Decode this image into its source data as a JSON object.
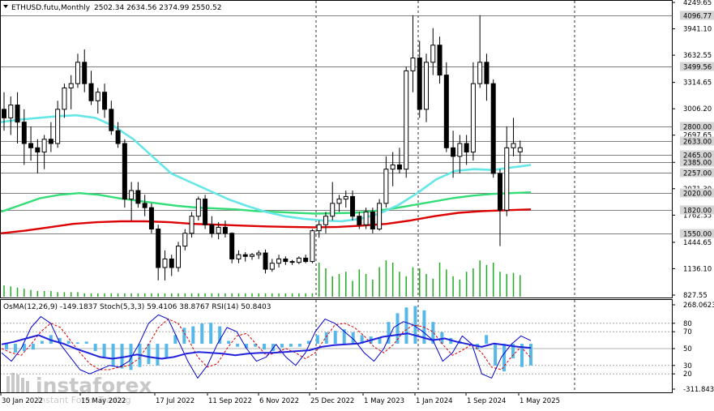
{
  "header": {
    "symbol": "ETHUSD.futu,Monthly",
    "ohlc": "2502.34 2634.56 2374.99 2550.52"
  },
  "oscillator_header": "OsMA(12,26,9) -149.1837  Stoch(5,3,3) 59.4106 38.8767  RSI(14) 50.8403",
  "watermark": {
    "brand": "instaforex",
    "tagline": "Instant Forex Trading"
  },
  "colors": {
    "up_candle": "#ffffff",
    "down_candle": "#000000",
    "ma_fast": "#66e6e6",
    "ma_mid": "#33dd77",
    "ma_slow": "#dd0000",
    "volume": "#22aa22",
    "osma_hist": "#55b8e8",
    "stoch_main": "#0000cc",
    "stoch_signal": "#dd0000",
    "rsi": "#2222dd",
    "tag_bg": "#d4d4d4"
  },
  "chart_data": [
    {
      "type": "candlestick",
      "title": "ETHUSD.futu,Monthly",
      "price_axis_ticks": [
        "4249.65",
        "3941.10",
        "3632.55",
        "3314.65",
        "3006.20",
        "2697.65",
        "2379.75",
        "2071.30",
        "1762.35",
        "1444.65",
        "1136.10",
        "827.55"
      ],
      "price_axis_tick_values": [
        4249.65,
        3941.1,
        3632.55,
        3314.65,
        3006.2,
        2697.65,
        2379.75,
        2071.3,
        1762.35,
        1444.65,
        1136.1,
        827.55
      ],
      "level_tags": [
        "4096.77",
        "3499.56",
        "2800.00",
        "2633.00",
        "2465.00",
        "2385.00",
        "2257.00",
        "2020.00",
        "1820.00",
        "1550.00"
      ],
      "level_values": [
        4096.77,
        3499.56,
        2800.0,
        2633.0,
        2465.0,
        2385.0,
        2257.0,
        2020.0,
        1820.0,
        1550.0
      ],
      "x_axis_labels": [
        "30 Jan 2022",
        "15 May 2022",
        "17 Jul 2022",
        "11 Sep 2022",
        "6 Nov 2022",
        "25 Dec 2022",
        "1 May 2023",
        "1 Jan 2024",
        "1 Sep 2024",
        "1 May 2025"
      ],
      "candles": [
        [
          3000,
          3200,
          2750,
          2900
        ],
        [
          2900,
          3150,
          2700,
          3050
        ],
        [
          3050,
          3200,
          2600,
          2850
        ],
        [
          2850,
          3000,
          2350,
          2600
        ],
        [
          2600,
          2800,
          2400,
          2550
        ],
        [
          2550,
          2650,
          2250,
          2500
        ],
        [
          2500,
          2700,
          2300,
          2650
        ],
        [
          2650,
          2850,
          2500,
          2600
        ],
        [
          2600,
          3100,
          2550,
          3000
        ],
        [
          3000,
          3300,
          2900,
          3250
        ],
        [
          3250,
          3400,
          3000,
          3300
        ],
        [
          3300,
          3650,
          3250,
          3550
        ],
        [
          3550,
          3700,
          3200,
          3300
        ],
        [
          3300,
          3450,
          3050,
          3100
        ],
        [
          3100,
          3250,
          2950,
          3200
        ],
        [
          3200,
          3300,
          2900,
          3000
        ],
        [
          3000,
          3100,
          2700,
          2750
        ],
        [
          2750,
          2850,
          2550,
          2600
        ],
        [
          2600,
          2650,
          1850,
          1950
        ],
        [
          1950,
          2150,
          1700,
          2050
        ],
        [
          2050,
          2150,
          1850,
          1900
        ],
        [
          1900,
          2000,
          1750,
          1850
        ],
        [
          1850,
          1900,
          1550,
          1600
        ],
        [
          1600,
          1650,
          1000,
          1150
        ],
        [
          1150,
          1350,
          1000,
          1250
        ],
        [
          1250,
          1300,
          1050,
          1150
        ],
        [
          1150,
          1450,
          1100,
          1400
        ],
        [
          1400,
          1600,
          1350,
          1550
        ],
        [
          1550,
          1800,
          1500,
          1750
        ],
        [
          1750,
          1980,
          1700,
          1950
        ],
        [
          1950,
          2000,
          1600,
          1650
        ],
        [
          1650,
          1750,
          1500,
          1550
        ],
        [
          1550,
          1680,
          1480,
          1620
        ],
        [
          1620,
          1700,
          1500,
          1550
        ],
        [
          1550,
          1560,
          1200,
          1250
        ],
        [
          1250,
          1350,
          1200,
          1300
        ],
        [
          1300,
          1330,
          1220,
          1280
        ],
        [
          1280,
          1320,
          1240,
          1300
        ],
        [
          1300,
          1350,
          1250,
          1320
        ],
        [
          1320,
          1360,
          1080,
          1130
        ],
        [
          1130,
          1250,
          1100,
          1200
        ],
        [
          1200,
          1300,
          1150,
          1250
        ],
        [
          1250,
          1280,
          1180,
          1220
        ],
        [
          1220,
          1240,
          1180,
          1210
        ],
        [
          1210,
          1280,
          1190,
          1260
        ],
        [
          1260,
          1300,
          1200,
          1220
        ],
        [
          1220,
          1600,
          1200,
          1580
        ],
        [
          1580,
          1700,
          1500,
          1650
        ],
        [
          1650,
          1800,
          1550,
          1750
        ],
        [
          1750,
          2150,
          1700,
          1900
        ],
        [
          1900,
          2000,
          1800,
          1950
        ],
        [
          1950,
          2050,
          1850,
          1980
        ],
        [
          1980,
          2050,
          1700,
          1750
        ],
        [
          1750,
          1800,
          1600,
          1650
        ],
        [
          1650,
          1850,
          1600,
          1800
        ],
        [
          1800,
          1850,
          1550,
          1600
        ],
        [
          1600,
          1950,
          1580,
          1900
        ],
        [
          1900,
          2450,
          1850,
          2300
        ],
        [
          2300,
          2500,
          2100,
          2350
        ],
        [
          2350,
          2550,
          2250,
          2300
        ],
        [
          2300,
          3500,
          2200,
          3450
        ],
        [
          3450,
          4100,
          3200,
          3600
        ],
        [
          3600,
          3800,
          2900,
          3000
        ],
        [
          3000,
          3650,
          2850,
          3550
        ],
        [
          3550,
          3950,
          3400,
          3750
        ],
        [
          3750,
          3850,
          3300,
          3400
        ],
        [
          3400,
          3550,
          2500,
          2550
        ],
        [
          2550,
          2750,
          2200,
          2450
        ],
        [
          2450,
          2700,
          2250,
          2600
        ],
        [
          2600,
          2700,
          2350,
          2500
        ],
        [
          2500,
          3550,
          2400,
          3300
        ],
        [
          3300,
          4100,
          3250,
          3550
        ],
        [
          3550,
          3650,
          3100,
          3300
        ],
        [
          3300,
          3350,
          2200,
          2250
        ],
        [
          2250,
          2300,
          1400,
          1820
        ],
        [
          1820,
          2800,
          1750,
          2550
        ],
        [
          2550,
          2900,
          2450,
          2600
        ],
        [
          2502.34,
          2634.56,
          2374.99,
          2550.52
        ]
      ],
      "ma_fast": [
        2850,
        2880,
        2900,
        2920,
        2930,
        2900,
        2800,
        2650,
        2450,
        2250,
        2150,
        2050,
        1950,
        1870,
        1800,
        1750,
        1720,
        1700,
        1690,
        1720,
        1780,
        1880,
        2020,
        2180,
        2280,
        2300,
        2290,
        2320,
        2350
      ],
      "ma_mid": [
        1800,
        1880,
        1960,
        2000,
        2020,
        2000,
        1960,
        1930,
        1900,
        1870,
        1850,
        1840,
        1830,
        1810,
        1800,
        1790,
        1780,
        1785,
        1790,
        1810,
        1840,
        1880,
        1920,
        1960,
        1990,
        2010,
        2020,
        2030
      ],
      "ma_slow": [
        1550,
        1580,
        1620,
        1660,
        1680,
        1690,
        1690,
        1680,
        1660,
        1650,
        1640,
        1630,
        1625,
        1620,
        1625,
        1640,
        1660,
        1700,
        1750,
        1790,
        1810,
        1820,
        1830
      ],
      "volume": [
        10,
        9,
        8,
        7,
        6,
        5,
        5,
        5,
        4,
        4,
        4,
        4,
        3,
        3,
        3,
        3,
        3,
        3,
        3,
        3,
        3,
        3,
        3,
        3,
        3,
        3,
        3,
        3,
        3,
        3,
        3,
        3,
        3,
        3,
        3,
        3,
        3,
        3,
        3,
        3,
        3,
        3,
        3,
        3,
        3,
        3,
        3,
        30,
        25,
        18,
        20,
        22,
        14,
        24,
        20,
        15,
        26,
        32,
        30,
        22,
        18,
        26,
        25,
        20,
        16,
        30,
        24,
        18,
        15,
        22,
        25,
        32,
        28,
        30,
        22,
        20,
        21,
        19
      ]
    },
    {
      "type": "oscillator",
      "title": "OsMA(12,26,9) -149.1837  Stoch(5,3,3) 59.4106 38.8767  RSI(14) 50.8403",
      "axis_ticks": [
        "268.0623",
        "80",
        "70",
        "50",
        "30",
        "20",
        "-311.8439"
      ],
      "axis_tick_values": [
        268.0623,
        80,
        70,
        50,
        30,
        20,
        -311.8439
      ],
      "osma": [
        -40,
        -60,
        -50,
        -40,
        20,
        60,
        40,
        20,
        10,
        15,
        -50,
        -90,
        -150,
        -170,
        -180,
        -160,
        -140,
        -150,
        -100,
        60,
        110,
        120,
        140,
        145,
        120,
        20,
        -20,
        -30,
        -20,
        -40,
        -50,
        -25,
        -20,
        -20,
        20,
        60,
        80,
        90,
        100,
        80,
        60,
        50,
        40,
        150,
        210,
        250,
        260,
        230,
        150,
        80,
        40,
        20,
        0,
        -40,
        60,
        -150,
        -190,
        -100,
        -160,
        -149.1837
      ],
      "stoch_main": [
        45,
        35,
        50,
        75,
        88,
        80,
        55,
        40,
        25,
        20,
        25,
        30,
        28,
        35,
        55,
        80,
        90,
        85,
        60,
        35,
        15,
        30,
        55,
        75,
        70,
        50,
        35,
        40,
        55,
        40,
        30,
        45,
        70,
        85,
        80,
        70,
        60,
        45,
        35,
        50,
        75,
        82,
        78,
        70,
        60,
        35,
        45,
        65,
        55,
        20,
        15,
        40,
        55,
        65,
        59.4106
      ],
      "stoch_signal": [
        50,
        45,
        42,
        55,
        70,
        80,
        75,
        60,
        45,
        32,
        25,
        25,
        28,
        30,
        38,
        55,
        75,
        85,
        80,
        62,
        40,
        28,
        32,
        50,
        65,
        68,
        55,
        42,
        45,
        50,
        45,
        38,
        45,
        62,
        78,
        80,
        75,
        65,
        52,
        45,
        55,
        70,
        78,
        76,
        70,
        55,
        42,
        48,
        55,
        45,
        28,
        25,
        40,
        52,
        38.8767
      ],
      "rsi": [
        55,
        58,
        62,
        66,
        60,
        56,
        50,
        45,
        40,
        38,
        40,
        43,
        40,
        38,
        40,
        44,
        46,
        45,
        44,
        42,
        44,
        45,
        45,
        46,
        47,
        48,
        52,
        54,
        55,
        56,
        60,
        64,
        66,
        68,
        64,
        60,
        62,
        58,
        55,
        52,
        56,
        54,
        52,
        50.8403
      ]
    }
  ]
}
